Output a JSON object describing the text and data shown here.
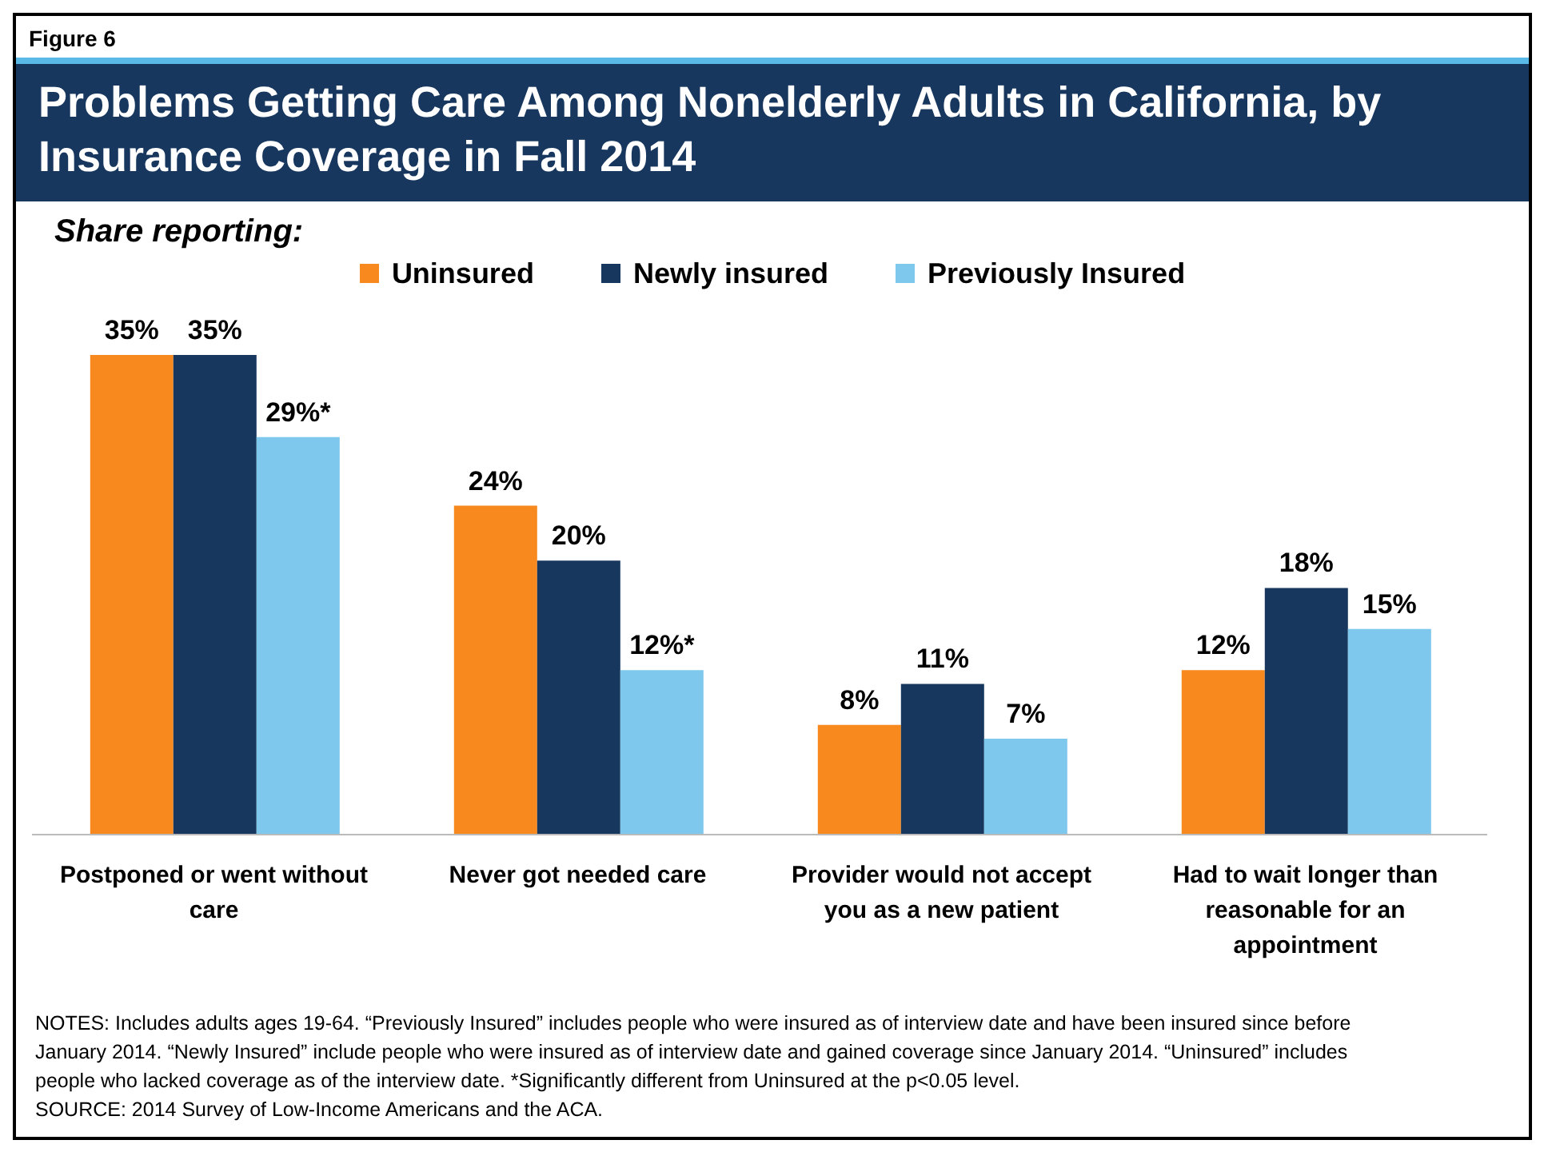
{
  "chart_data": {
    "type": "bar",
    "title": "Problems Getting Care Among Nonelderly Adults in California, by Insurance Coverage in Fall 2014",
    "subtitle": "Share reporting:",
    "categories": [
      "Postponed or went without care",
      "Never got needed care",
      "Provider would not accept you as a new patient",
      "Had to wait longer than reasonable for an appointment"
    ],
    "series": [
      {
        "name": "Uninsured",
        "color": "#f7891e",
        "values": [
          35,
          24,
          8,
          12
        ],
        "value_labels": [
          "35%",
          "24%",
          "8%",
          "12%"
        ]
      },
      {
        "name": "Newly insured",
        "color": "#17375e",
        "values": [
          35,
          20,
          11,
          18
        ],
        "value_labels": [
          "35%",
          "20%",
          "11%",
          "18%"
        ]
      },
      {
        "name": "Previously Insured",
        "color": "#7dc8ec",
        "values": [
          29,
          12,
          7,
          15
        ],
        "value_labels": [
          "29%*",
          "12%*",
          "7%",
          "15%"
        ]
      }
    ],
    "legend": "top",
    "annotations": [
      "Figure 6",
      "NOTES: Includes adults ages 19-64. “Previously Insured” includes people who were insured as of interview date and have been insured since before January 2014. “Newly Insured” include people who were insured as of interview date and gained coverage since January 2014. “Uninsured” includes people who lacked coverage as of the interview date. *Significantly different from Uninsured at the p<0.05 level.",
      "SOURCE: 2014 Survey of Low-Income Americans and the ACA."
    ]
  }
}
